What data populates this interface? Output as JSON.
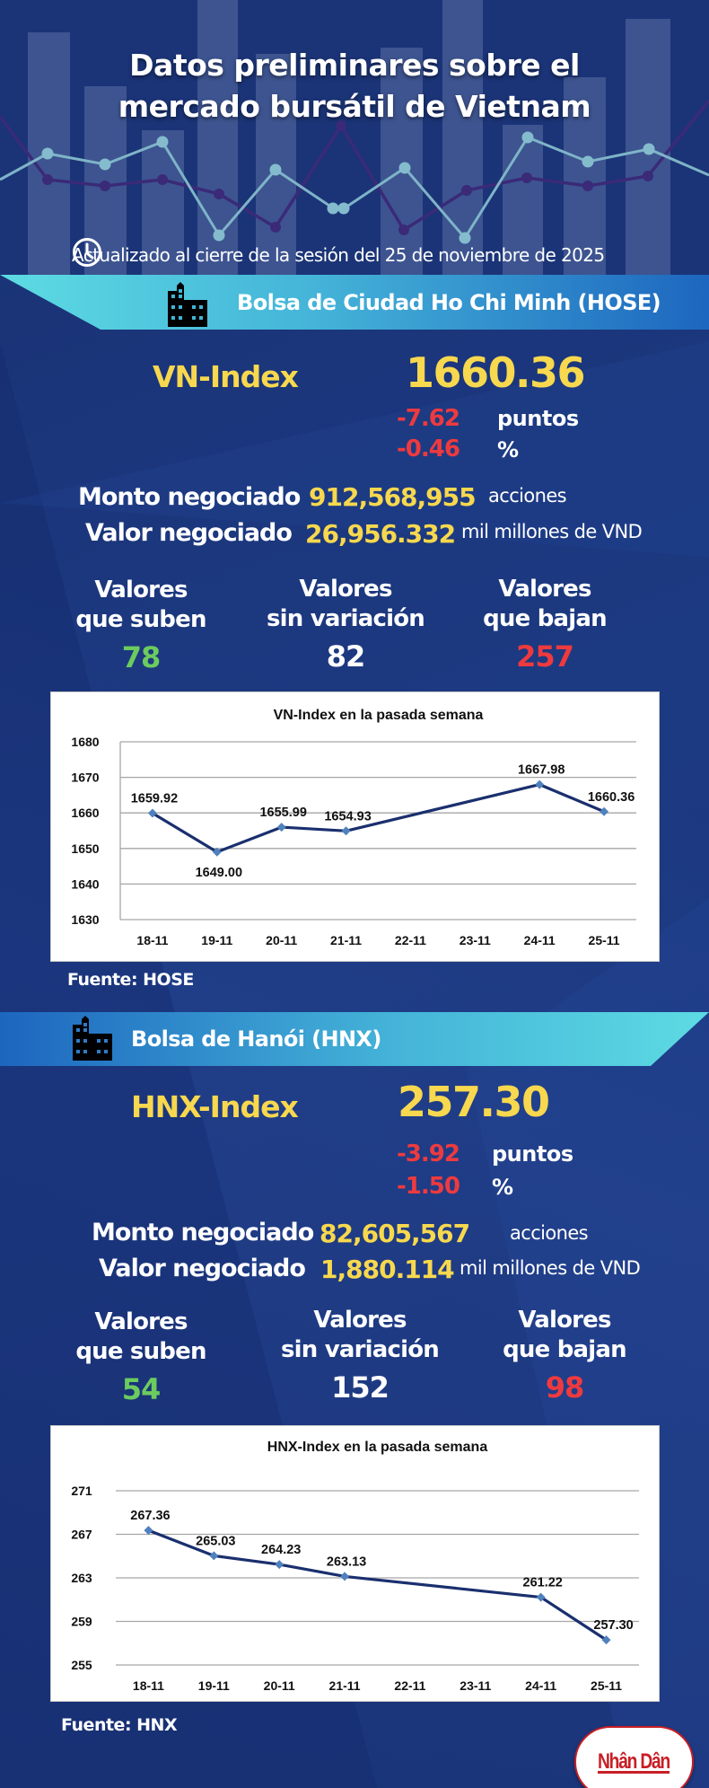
{
  "header": {
    "title_line1": "Datos preliminares sobre el",
    "title_line2": "mercado bursátil de Vietnam",
    "updated": "Actualizado al cierre de la sesión del 25 de noviembre de 2025",
    "icon": "clock-icon"
  },
  "colors": {
    "background": "#1b3477",
    "band_light": "#5ddbe3",
    "band_dark": "#1f6cc0",
    "index_yellow": "#f7d84e",
    "decline_red": "#ee3a3f",
    "advance_green": "#6ccb5f",
    "chart_line": "#1a2f6e",
    "chart_marker": "#4f81bd"
  },
  "hose": {
    "band_title": "Bolsa de Ciudad Ho Chi Minh (HOSE)",
    "icon": "building-icon",
    "index_name": "VN-Index",
    "index_value": "1660.36",
    "change_points": "-7.62",
    "change_points_unit": "puntos",
    "change_percent": "-0.46",
    "change_percent_unit": "%",
    "volume_label": "Monto negociado",
    "volume_value": "912,568,955",
    "volume_unit": "acciones",
    "value_label": "Valor negociado",
    "value_value": "26,956.332",
    "value_unit": "mil millones de VND",
    "advancers_label_1": "Valores",
    "advancers_label_2": "que suben",
    "advancers": "78",
    "unchanged_label_1": "Valores",
    "unchanged_label_2": "sin variación",
    "unchanged": "82",
    "decliners_label_1": "Valores",
    "decliners_label_2": "que bajan",
    "decliners": "257",
    "source": "Fuente: HOSE"
  },
  "hnx": {
    "band_title": "Bolsa de Hanói (HNX)",
    "icon": "building-icon",
    "index_name": "HNX-Index",
    "index_value": "257.30",
    "change_points": "-3.92",
    "change_points_unit": "puntos",
    "change_percent": "-1.50",
    "change_percent_unit": "%",
    "volume_label": "Monto negociado",
    "volume_value": "82,605,567",
    "volume_unit": "acciones",
    "value_label": "Valor negociado",
    "value_value": "1,880.114",
    "value_unit": "mil millones de VND",
    "advancers_label_1": "Valores",
    "advancers_label_2": "que suben",
    "advancers": "54",
    "unchanged_label_1": "Valores",
    "unchanged_label_2": "sin variación",
    "unchanged": "152",
    "decliners_label_1": "Valores",
    "decliners_label_2": "que bajan",
    "decliners": "98",
    "source": "Fuente:  HNX"
  },
  "logo": {
    "text": "Nhân Dân"
  },
  "chart_data": [
    {
      "type": "line",
      "title": "VN-Index en la pasada semana",
      "xlabel": "",
      "ylabel": "",
      "categories": [
        "18-11",
        "19-11",
        "20-11",
        "21-11",
        "22-11",
        "23-11",
        "24-11",
        "25-11"
      ],
      "series": [
        {
          "name": "VN-Index",
          "values": [
            1659.92,
            1649.0,
            1655.99,
            1654.93,
            null,
            null,
            1667.98,
            1660.36
          ],
          "labels": [
            "1659.92",
            "1649.00",
            "1655.99",
            "1654.93",
            null,
            null,
            "1667.98",
            "1660.36"
          ],
          "label_position": [
            "above",
            "below",
            "above",
            "above",
            null,
            null,
            "above",
            "above"
          ]
        }
      ],
      "yticks": [
        1630,
        1640,
        1650,
        1660,
        1670,
        1680
      ],
      "ylim": [
        1630,
        1680
      ],
      "grid": true,
      "legend": "none",
      "connect_gaps": true
    },
    {
      "type": "line",
      "title": "HNX-Index en la pasada semana",
      "xlabel": "",
      "ylabel": "",
      "categories": [
        "18-11",
        "19-11",
        "20-11",
        "21-11",
        "22-11",
        "23-11",
        "24-11",
        "25-11"
      ],
      "series": [
        {
          "name": "HNX-Index",
          "values": [
            267.36,
            265.03,
            264.23,
            263.13,
            null,
            null,
            261.22,
            257.3
          ],
          "labels": [
            "267.36",
            "265.03",
            "264.23",
            "263.13",
            null,
            null,
            "261.22",
            "257.30"
          ],
          "label_position": [
            "above",
            "above",
            "above",
            "above",
            null,
            null,
            "above",
            "above"
          ]
        }
      ],
      "yticks": [
        255,
        259,
        263,
        267,
        271
      ],
      "ylim": [
        255,
        271
      ],
      "grid": true,
      "legend": "none",
      "connect_gaps": true
    }
  ]
}
